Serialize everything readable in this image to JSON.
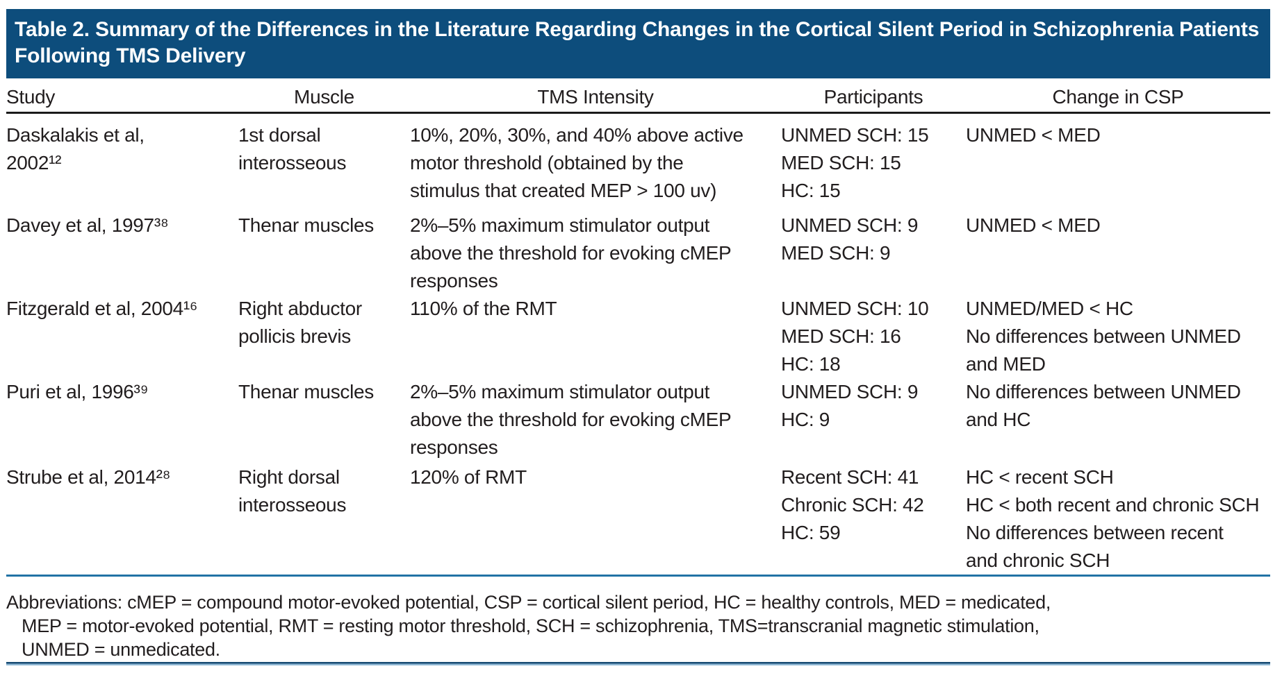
{
  "colors": {
    "header_bar": "#0d4d7c",
    "header_title_text": "#ffffff",
    "black_rule": "#1a1a1a",
    "blue_rule": "#2273a5",
    "body_text": "#211d1e"
  },
  "table": {
    "title": "Table 2. Summary of the Differences in the Literature Regarding Changes in the Cortical Silent Period in Schizophrenia Patients Following TMS Delivery",
    "columns": [
      "Study",
      "Muscle",
      "TMS Intensity",
      "Participants",
      "Change in CSP"
    ],
    "rows": [
      {
        "study_lines": [
          "Daskalakis et al,",
          "2002¹²"
        ],
        "muscle_lines": [
          "1st dorsal",
          "interosseous"
        ],
        "tms_lines": [
          "10%, 20%, 30%, and 40% above active",
          "motor threshold (obtained by the",
          "stimulus that created MEP > 100 uv)"
        ],
        "participants_lines": [
          "UNMED SCH: 15",
          "MED SCH: 15",
          "HC: 15"
        ],
        "change_lines": [
          "UNMED < MED"
        ]
      },
      {
        "study_lines": [
          "Davey et al, 1997³⁸"
        ],
        "muscle_lines": [
          "Thenar muscles"
        ],
        "tms_lines": [
          "2%–5% maximum stimulator output",
          "above the threshold for evoking cMEP",
          "responses"
        ],
        "participants_lines": [
          "UNMED SCH: 9",
          "MED SCH: 9"
        ],
        "change_lines": [
          "UNMED < MED"
        ]
      },
      {
        "study_lines": [
          "Fitzgerald et al, 2004¹⁶"
        ],
        "muscle_lines": [
          "Right abductor",
          "pollicis brevis"
        ],
        "tms_lines": [
          "110% of the RMT"
        ],
        "participants_lines": [
          "UNMED SCH: 10",
          "MED SCH: 16",
          "HC: 18"
        ],
        "change_lines": [
          "UNMED/MED < HC",
          "No differences between UNMED",
          "and MED"
        ]
      },
      {
        "study_lines": [
          "Puri et al, 1996³⁹"
        ],
        "muscle_lines": [
          "Thenar muscles"
        ],
        "tms_lines": [
          "2%–5% maximum stimulator output",
          "above the threshold for evoking cMEP",
          "responses"
        ],
        "participants_lines": [
          "UNMED SCH: 9",
          "HC: 9"
        ],
        "change_lines": [
          "No differences between UNMED",
          "and HC"
        ]
      },
      {
        "study_lines": [
          "Strube et al, 2014²⁸"
        ],
        "muscle_lines": [
          "Right dorsal",
          "interosseous"
        ],
        "tms_lines": [
          "120% of RMT"
        ],
        "participants_lines": [
          "Recent SCH: 41",
          "Chronic SCH: 42",
          "HC: 59"
        ],
        "change_lines": [
          "HC < recent SCH",
          "HC < both recent and chronic SCH",
          "No differences between recent",
          "and chronic SCH"
        ]
      }
    ],
    "footnote_lines": [
      "Abbreviations: cMEP = compound motor-evoked potential, CSP = cortical silent period, HC = healthy controls, MED = medicated,",
      "MEP = motor-evoked potential, RMT = resting motor threshold, SCH = schizophrenia, TMS=transcranial magnetic stimulation,",
      "UNMED = unmedicated."
    ]
  }
}
